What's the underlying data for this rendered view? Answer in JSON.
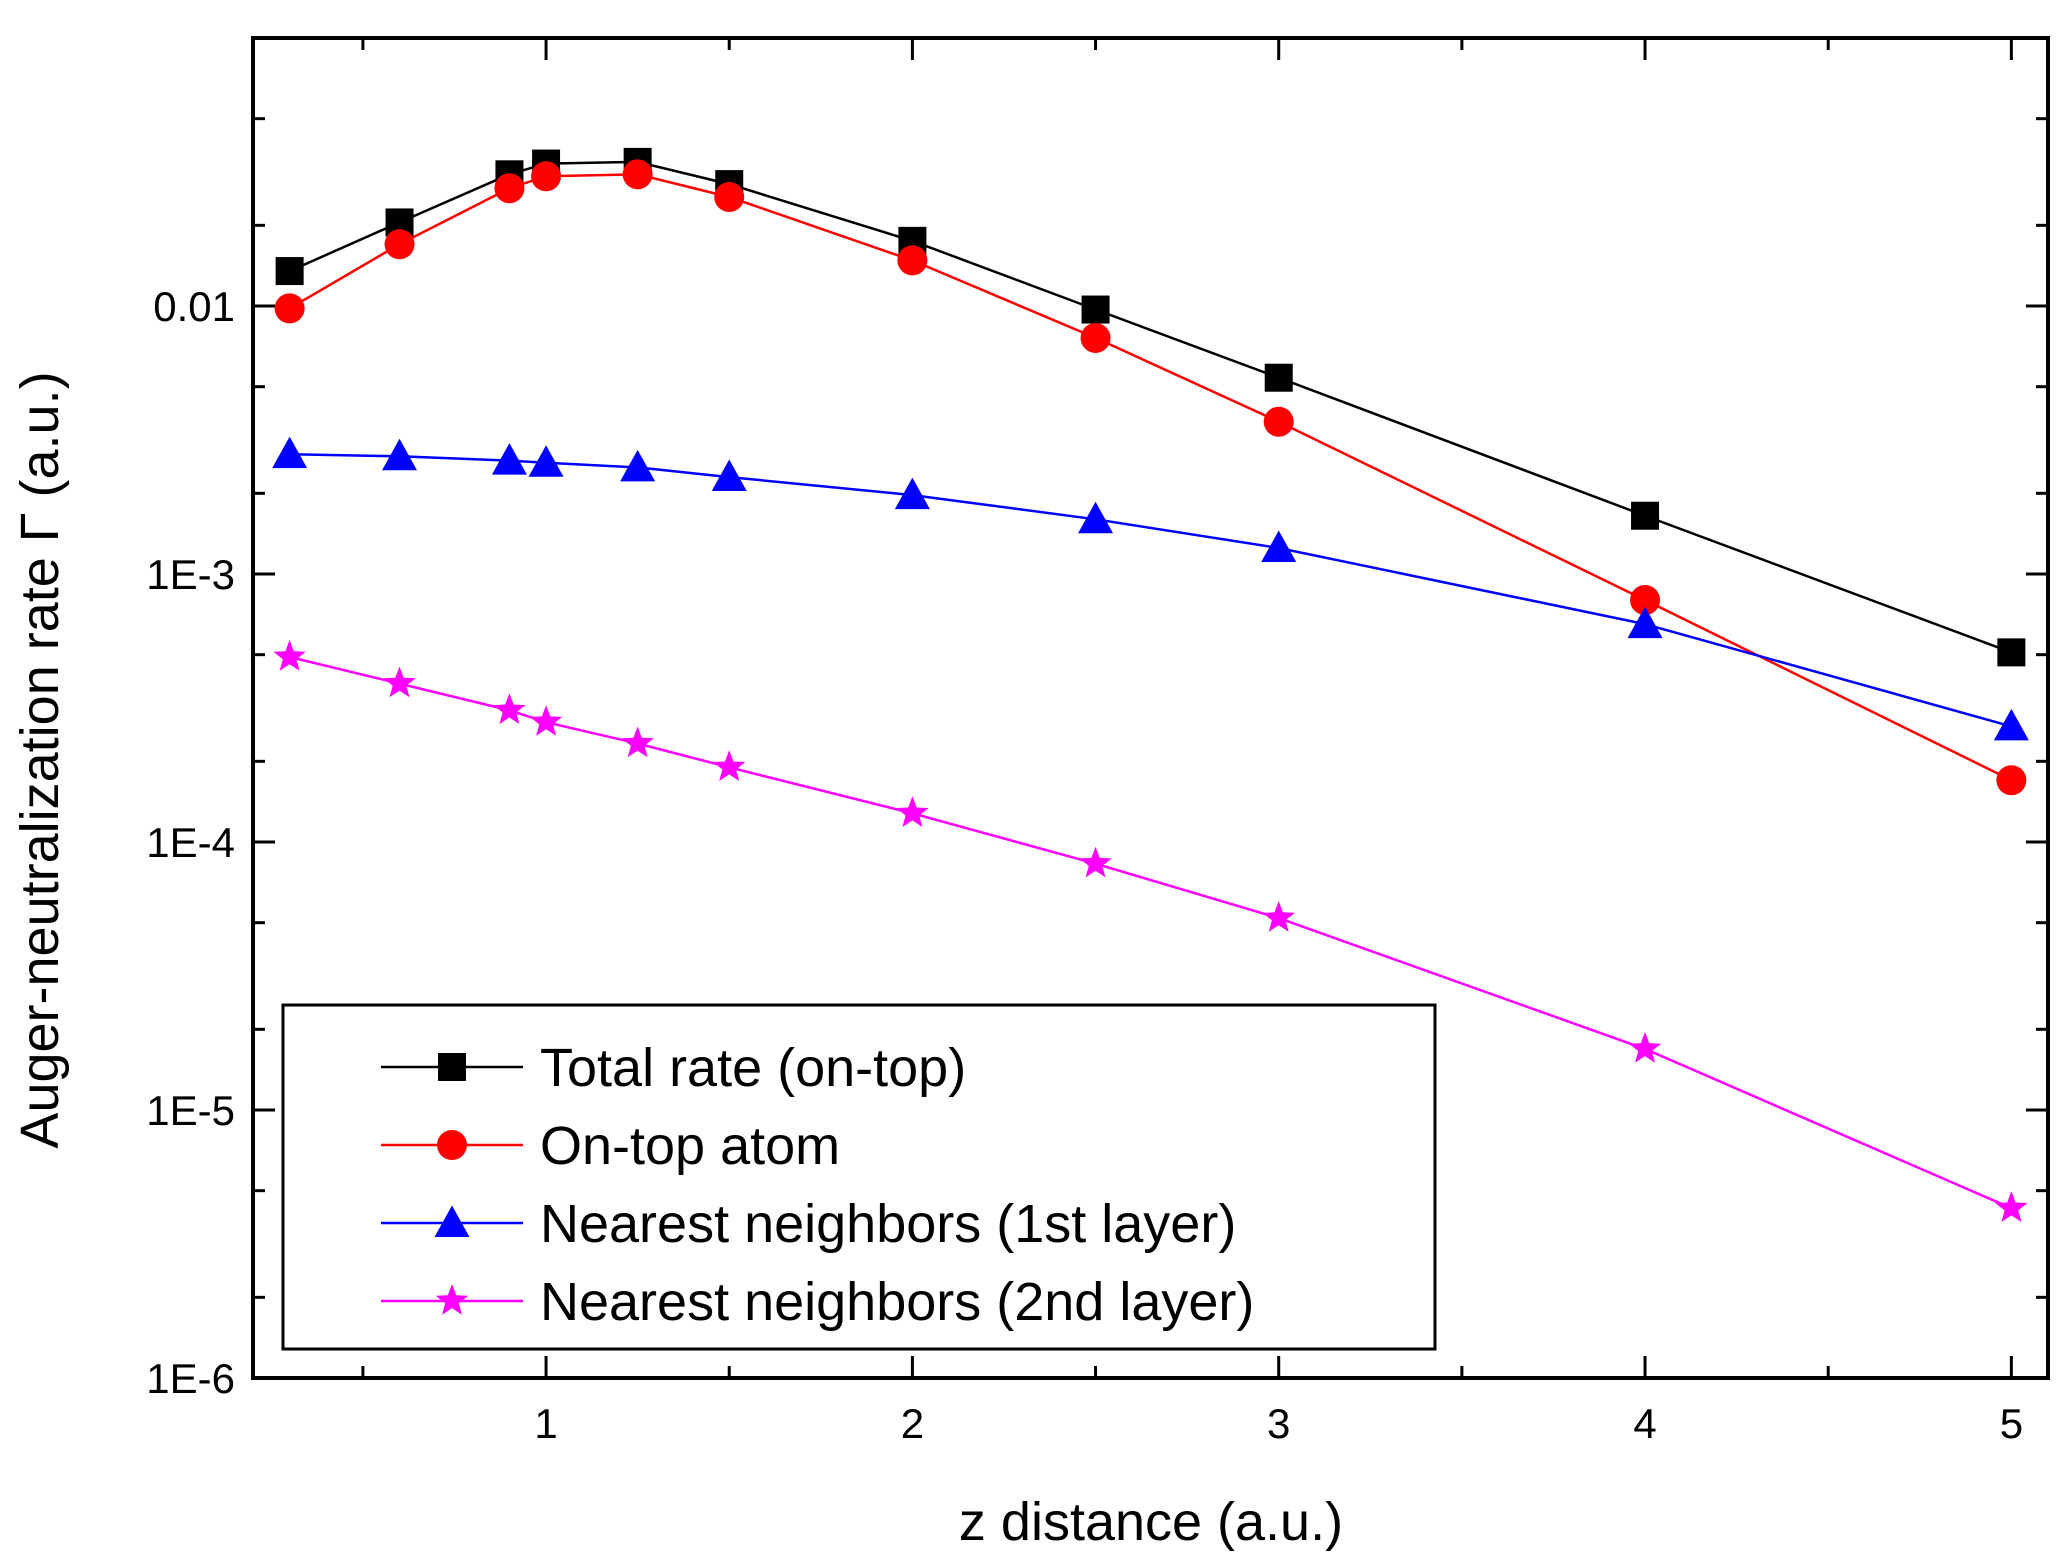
{
  "chart_data": {
    "type": "line",
    "title": "",
    "xlabel": "z distance (a.u.)",
    "ylabel": "Auger-neutralization rate Γ (a.u.)",
    "x_scale": "linear",
    "y_scale": "log",
    "xlim": [
      0.2,
      5.1
    ],
    "ylim": [
      1e-06,
      0.1
    ],
    "x_ticks": [
      1,
      2,
      3,
      4,
      5
    ],
    "x_tick_labels": [
      "1",
      "2",
      "3",
      "4",
      "5"
    ],
    "y_ticks": [
      1e-06,
      1e-05,
      0.0001,
      0.001,
      0.01
    ],
    "y_tick_labels": [
      "1E-6",
      "1E-5",
      "1E-4",
      "1E-3",
      "0.01"
    ],
    "grid": false,
    "legend_position": "bottom-left",
    "x": [
      0.3,
      0.6,
      0.9,
      1.0,
      1.25,
      1.5,
      2.0,
      2.5,
      3.0,
      4.0,
      5.0
    ],
    "series": [
      {
        "name": "Total rate (on-top)",
        "color": "#000000",
        "marker": "square",
        "values": [
          0.0135,
          0.0205,
          0.031,
          0.034,
          0.0345,
          0.0285,
          0.0175,
          0.0097,
          0.0054,
          0.00165,
          0.00051
        ]
      },
      {
        "name": "On-top atom",
        "color": "#ff0000",
        "marker": "circle",
        "values": [
          0.0098,
          0.017,
          0.0275,
          0.0305,
          0.031,
          0.0255,
          0.0148,
          0.0076,
          0.0037,
          0.0008,
          0.00017
        ]
      },
      {
        "name": "Nearest neighbors (1st layer)",
        "color": "#0000ff",
        "marker": "triangle",
        "values": [
          0.0028,
          0.00275,
          0.00265,
          0.0026,
          0.0025,
          0.0023,
          0.00197,
          0.0016,
          0.00125,
          0.00065,
          0.00027
        ]
      },
      {
        "name": "Nearest neighbors (2nd layer)",
        "color": "#ff00ff",
        "marker": "star",
        "values": [
          0.00049,
          0.00039,
          0.00031,
          0.00028,
          0.000233,
          0.00019,
          0.000128,
          8.3e-05,
          5.2e-05,
          1.69e-05,
          4.3e-06
        ]
      }
    ]
  }
}
